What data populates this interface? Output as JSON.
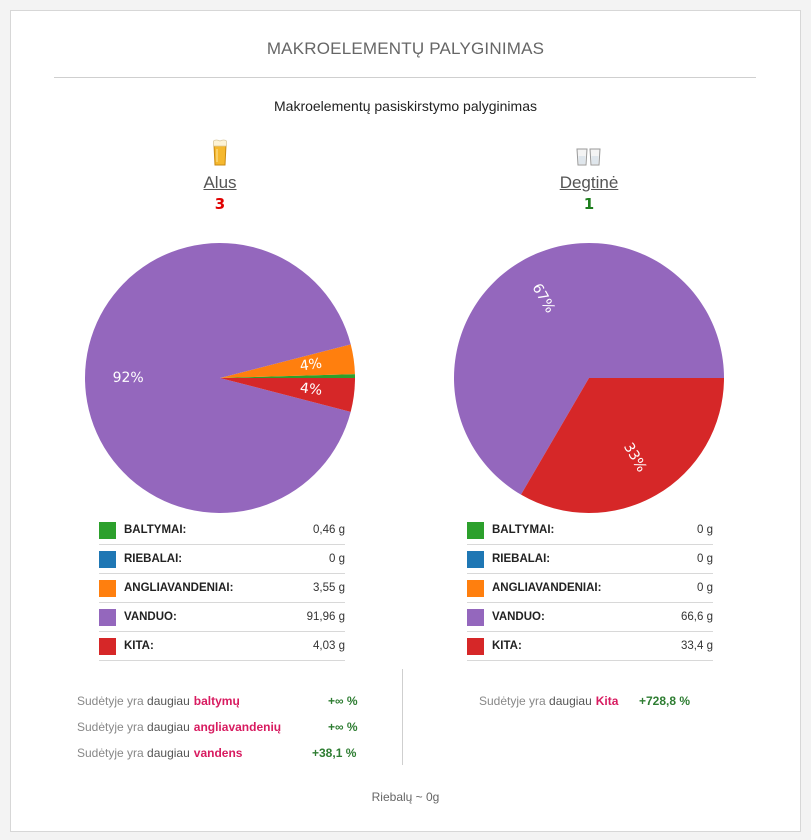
{
  "title": "MAKROELEMENTŲ PALYGINIMAS",
  "subtitle": "Makroelementų pasiskirstymo palyginimas",
  "colors": {
    "baltymai": "#2ca02c",
    "riebalai": "#1f77b4",
    "angliavandeniai": "#ff7f0e",
    "vanduo": "#9467bd",
    "kita": "#d62728"
  },
  "chart_data": [
    {
      "type": "pie",
      "name": "Alus",
      "score": "3",
      "score_color": "#e00000",
      "icon": "beer-glass-icon",
      "unit": "g",
      "slices": [
        {
          "key": "baltymai",
          "label": "BALTYMAI:",
          "value": 0.46,
          "display": "0,46 g",
          "pct_label": ""
        },
        {
          "key": "riebalai",
          "label": "RIEBALAI:",
          "value": 0,
          "display": "0 g",
          "pct_label": ""
        },
        {
          "key": "angliavandeniai",
          "label": "ANGLIAVANDENIAI:",
          "value": 3.55,
          "display": "3,55 g",
          "pct_label": "4%"
        },
        {
          "key": "vanduo",
          "label": "VANDUO:",
          "value": 91.96,
          "display": "91,96 g",
          "pct_label": "92%"
        },
        {
          "key": "kita",
          "label": "KITA:",
          "value": 4.03,
          "display": "4,03 g",
          "pct_label": "4%"
        }
      ]
    },
    {
      "type": "pie",
      "name": "Degtinė",
      "score": "1",
      "score_color": "#1e7e1e",
      "icon": "shot-glasses-icon",
      "unit": "g",
      "slices": [
        {
          "key": "baltymai",
          "label": "BALTYMAI:",
          "value": 0,
          "display": "0 g",
          "pct_label": ""
        },
        {
          "key": "riebalai",
          "label": "RIEBALAI:",
          "value": 0,
          "display": "0 g",
          "pct_label": ""
        },
        {
          "key": "angliavandeniai",
          "label": "ANGLIAVANDENIAI:",
          "value": 0,
          "display": "0 g",
          "pct_label": ""
        },
        {
          "key": "vanduo",
          "label": "VANDUO:",
          "value": 66.6,
          "display": "66,6 g",
          "pct_label": "67%"
        },
        {
          "key": "kita",
          "label": "KITA:",
          "value": 33.4,
          "display": "33,4 g",
          "pct_label": "33%"
        }
      ]
    }
  ],
  "comparison": {
    "prefix_1": "Sudėtyje yra",
    "prefix_2": "daugiau",
    "left": [
      {
        "nutrient": "baltymų",
        "pct": "+∞ %"
      },
      {
        "nutrient": "angliavandenių",
        "pct": "+∞ %"
      },
      {
        "nutrient": "vandens",
        "pct": "+38,1 %"
      }
    ],
    "right": [
      {
        "nutrient": "Kita",
        "pct": "+728,8 %"
      }
    ]
  },
  "footer": "Riebalų ~ 0g"
}
